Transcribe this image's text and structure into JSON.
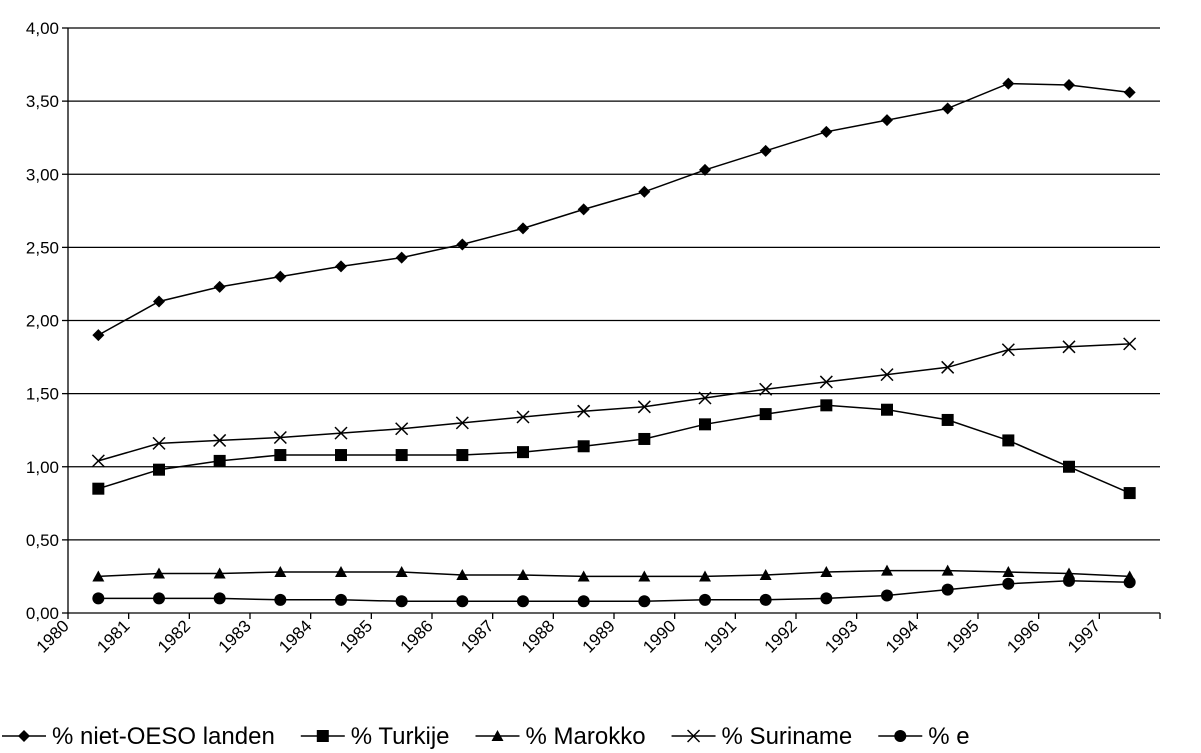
{
  "chart_data": {
    "type": "line",
    "title": "",
    "xlabel": "",
    "ylabel": "",
    "categories": [
      "1980",
      "1981",
      "1982",
      "1983",
      "1984",
      "1985",
      "1986",
      "1987",
      "1988",
      "1989",
      "1990",
      "1991",
      "1992",
      "1993",
      "1994",
      "1995",
      "1996",
      "1997"
    ],
    "ylim": [
      0,
      4
    ],
    "yticks": [
      "0,00",
      "0,50",
      "1,00",
      "1,50",
      "2,00",
      "2,50",
      "3,00",
      "3,50",
      "4,00"
    ],
    "grid": true,
    "legend_position": "bottom",
    "series": [
      {
        "name": "% niet-OESO landen",
        "marker": "diamond",
        "color": "#000000",
        "values": [
          1.9,
          2.13,
          2.23,
          2.3,
          2.37,
          2.43,
          2.52,
          2.63,
          2.76,
          2.88,
          3.03,
          3.16,
          3.29,
          3.37,
          3.45,
          3.62,
          3.61,
          3.56
        ]
      },
      {
        "name": "% Turkije",
        "marker": "square",
        "color": "#000000",
        "values": [
          0.85,
          0.98,
          1.04,
          1.08,
          1.08,
          1.08,
          1.08,
          1.1,
          1.14,
          1.19,
          1.29,
          1.36,
          1.42,
          1.39,
          1.32,
          1.18,
          1.0,
          0.82
        ]
      },
      {
        "name": "% Marokko",
        "marker": "triangle",
        "color": "#000000",
        "values": [
          0.25,
          0.27,
          0.27,
          0.28,
          0.28,
          0.28,
          0.26,
          0.26,
          0.25,
          0.25,
          0.25,
          0.26,
          0.28,
          0.29,
          0.29,
          0.28,
          0.27,
          0.25
        ]
      },
      {
        "name": "% Suriname",
        "marker": "x",
        "color": "#000000",
        "values": [
          1.04,
          1.16,
          1.18,
          1.2,
          1.23,
          1.26,
          1.3,
          1.34,
          1.38,
          1.41,
          1.47,
          1.53,
          1.58,
          1.63,
          1.68,
          1.8,
          1.82,
          1.84
        ]
      },
      {
        "name": "% e",
        "marker": "circle",
        "color": "#000000",
        "values": [
          0.1,
          0.1,
          0.1,
          0.09,
          0.09,
          0.08,
          0.08,
          0.08,
          0.08,
          0.08,
          0.09,
          0.09,
          0.1,
          0.12,
          0.16,
          0.2,
          0.22,
          0.21
        ]
      }
    ]
  }
}
